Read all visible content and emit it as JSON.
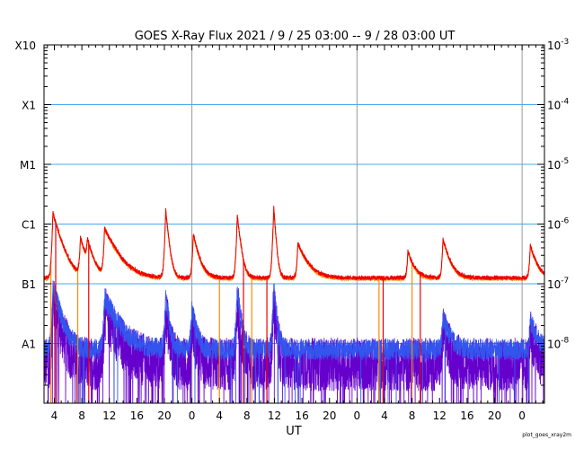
{
  "chart_data": {
    "type": "line",
    "title": "GOES X-Ray Flux   2021 /  9 / 25   03:00 --  9 / 28   03:00   UT",
    "xlabel": "UT",
    "credit": "plot_goes_xray2m",
    "x_range_hours": [
      -0.5,
      72.25
    ],
    "x_ticks": [
      {
        "h": 1,
        "label": "4"
      },
      {
        "h": 5,
        "label": "8"
      },
      {
        "h": 9,
        "label": "12"
      },
      {
        "h": 13,
        "label": "16"
      },
      {
        "h": 17,
        "label": "20"
      },
      {
        "h": 21,
        "label": "0"
      },
      {
        "h": 25,
        "label": "4"
      },
      {
        "h": 29,
        "label": "8"
      },
      {
        "h": 33,
        "label": "12"
      },
      {
        "h": 37,
        "label": "16"
      },
      {
        "h": 41,
        "label": "20"
      },
      {
        "h": 45,
        "label": "0"
      },
      {
        "h": 49,
        "label": "4"
      },
      {
        "h": 53,
        "label": "8"
      },
      {
        "h": 57,
        "label": "12"
      },
      {
        "h": 61,
        "label": "16"
      },
      {
        "h": 65,
        "label": "20"
      },
      {
        "h": 69,
        "label": "0"
      }
    ],
    "day_boundaries_hours": [
      21,
      45,
      69
    ],
    "y_log_range": [
      -9,
      -3
    ],
    "y_left_labels": [
      {
        "exp": -3,
        "label": "X10"
      },
      {
        "exp": -4,
        "label": "X1"
      },
      {
        "exp": -5,
        "label": "M1"
      },
      {
        "exp": -6,
        "label": "C1"
      },
      {
        "exp": -7,
        "label": "B1"
      },
      {
        "exp": -8,
        "label": "A1"
      }
    ],
    "y_right_labels": [
      {
        "exp": -3,
        "base": "10",
        "sup": "-3"
      },
      {
        "exp": -4,
        "base": "10",
        "sup": "-4"
      },
      {
        "exp": -5,
        "base": "10",
        "sup": "-5"
      },
      {
        "exp": -6,
        "base": "10",
        "sup": "-6"
      },
      {
        "exp": -7,
        "base": "10",
        "sup": "-7"
      },
      {
        "exp": -8,
        "base": "10",
        "sup": "-8"
      }
    ],
    "gridlines_exp": [
      -4,
      -5,
      -6,
      -7,
      -8
    ],
    "colors": {
      "long_primary": "#ee0000",
      "long_secondary": "#ff8800",
      "short_primary": "#3355ee",
      "short_secondary": "#6600cc",
      "grid_h": "#44aaee",
      "grid_v": "#999999",
      "frame": "#000000"
    },
    "series": [
      {
        "key": "long",
        "baseline_log": -6.9,
        "events": [
          {
            "h": 0.8,
            "peak": -5.85,
            "decay": 1.0
          },
          {
            "h": 4.8,
            "peak": -6.35,
            "decay": 0.8
          },
          {
            "h": 5.8,
            "peak": -6.5,
            "decay": 0.8
          },
          {
            "h": 8.3,
            "peak": -6.15,
            "decay": 1.6
          },
          {
            "h": 17.2,
            "peak": -5.8,
            "decay": 0.35
          },
          {
            "h": 21.2,
            "peak": -6.25,
            "decay": 0.7
          },
          {
            "h": 27.6,
            "peak": -5.9,
            "decay": 0.4
          },
          {
            "h": 32.9,
            "peak": -5.75,
            "decay": 0.25
          },
          {
            "h": 36.4,
            "peak": -6.45,
            "decay": 1.2
          },
          {
            "h": 52.4,
            "peak": -6.65,
            "decay": 0.8
          },
          {
            "h": 57.5,
            "peak": -6.35,
            "decay": 0.8
          },
          {
            "h": 70.2,
            "peak": -6.5,
            "decay": 0.8
          }
        ],
        "dropouts_hours": [
          0.5,
          1.2,
          4.4,
          6.0,
          25.0,
          28.5,
          29.7,
          31.9,
          48.2,
          48.8,
          53.0,
          54.2
        ]
      },
      {
        "key": "short",
        "baseline_log": -8.1,
        "events": [
          {
            "h": 0.8,
            "peak": -7.1,
            "decay": 0.9
          },
          {
            "h": 8.3,
            "peak": -7.3,
            "decay": 1.6
          },
          {
            "h": 17.2,
            "peak": -7.25,
            "decay": 0.4
          },
          {
            "h": 21.0,
            "peak": -7.5,
            "decay": 0.5
          },
          {
            "h": 27.6,
            "peak": -7.15,
            "decay": 0.4
          },
          {
            "h": 32.9,
            "peak": -7.05,
            "decay": 0.3
          },
          {
            "h": 57.5,
            "peak": -7.7,
            "decay": 0.8
          },
          {
            "h": 70.2,
            "peak": -7.8,
            "decay": 0.8
          }
        ]
      }
    ]
  }
}
